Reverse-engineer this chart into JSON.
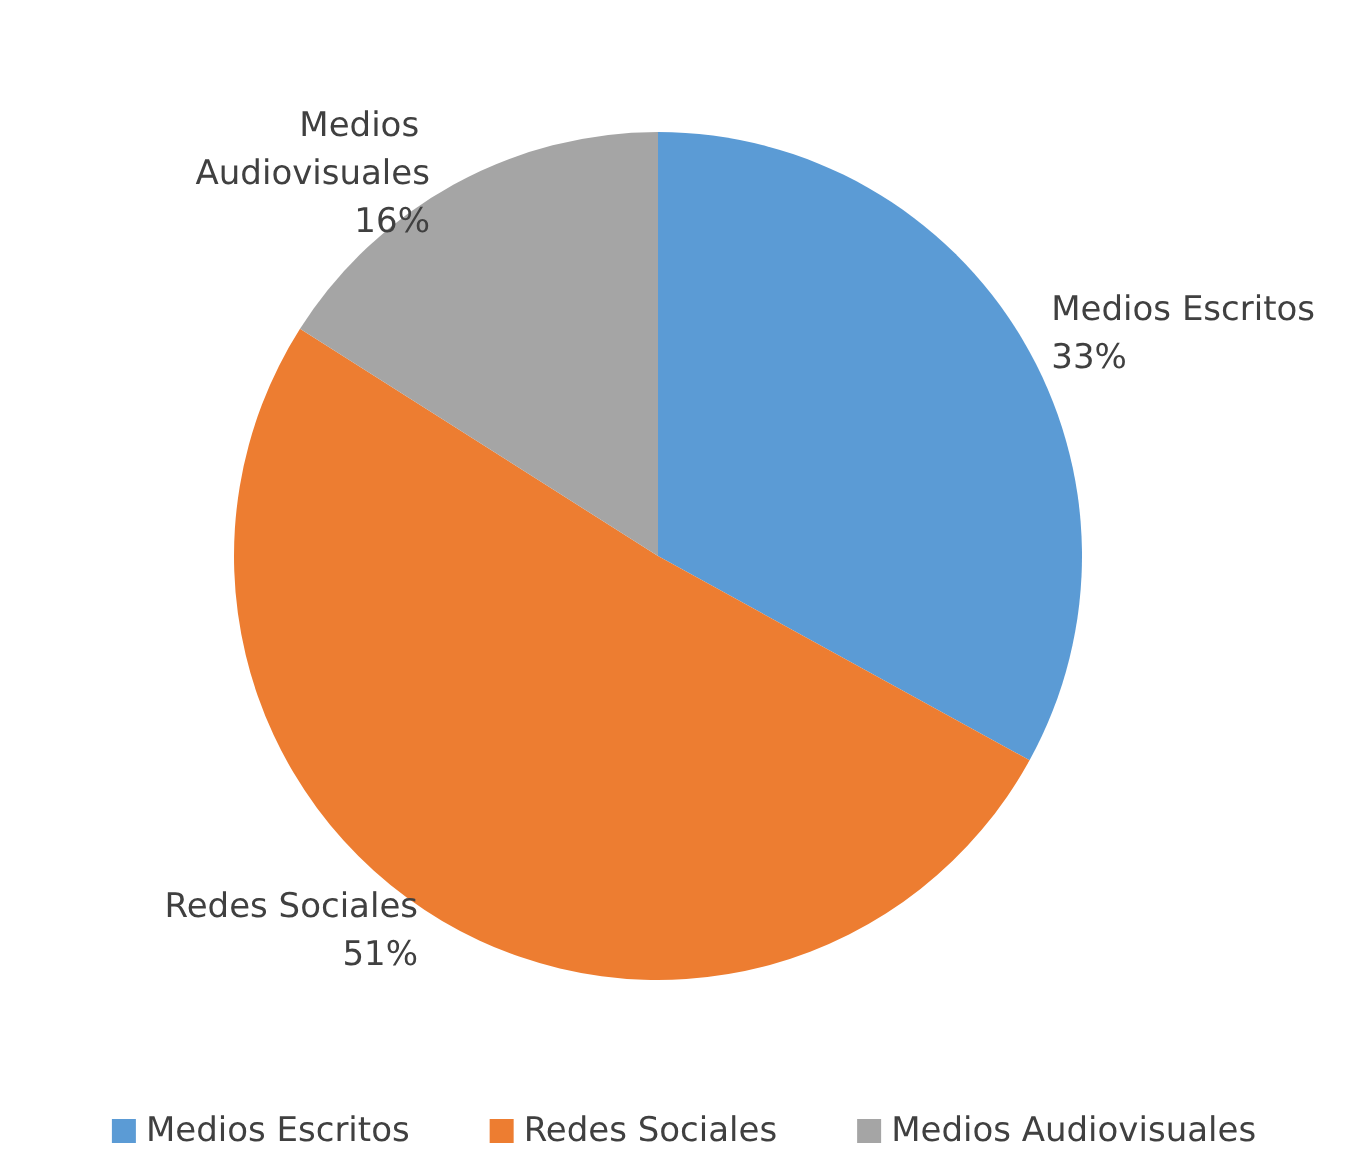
{
  "chart_data": {
    "type": "pie",
    "categories": [
      "Medios Escritos",
      "Redes Sociales",
      "Medios Audiovisuales"
    ],
    "values": [
      33,
      51,
      16
    ],
    "colors": [
      "#5b9bd5",
      "#ed7d31",
      "#a5a5a5"
    ],
    "value_labels": [
      "33%",
      "51%",
      "16%"
    ],
    "legend": "bottom"
  }
}
